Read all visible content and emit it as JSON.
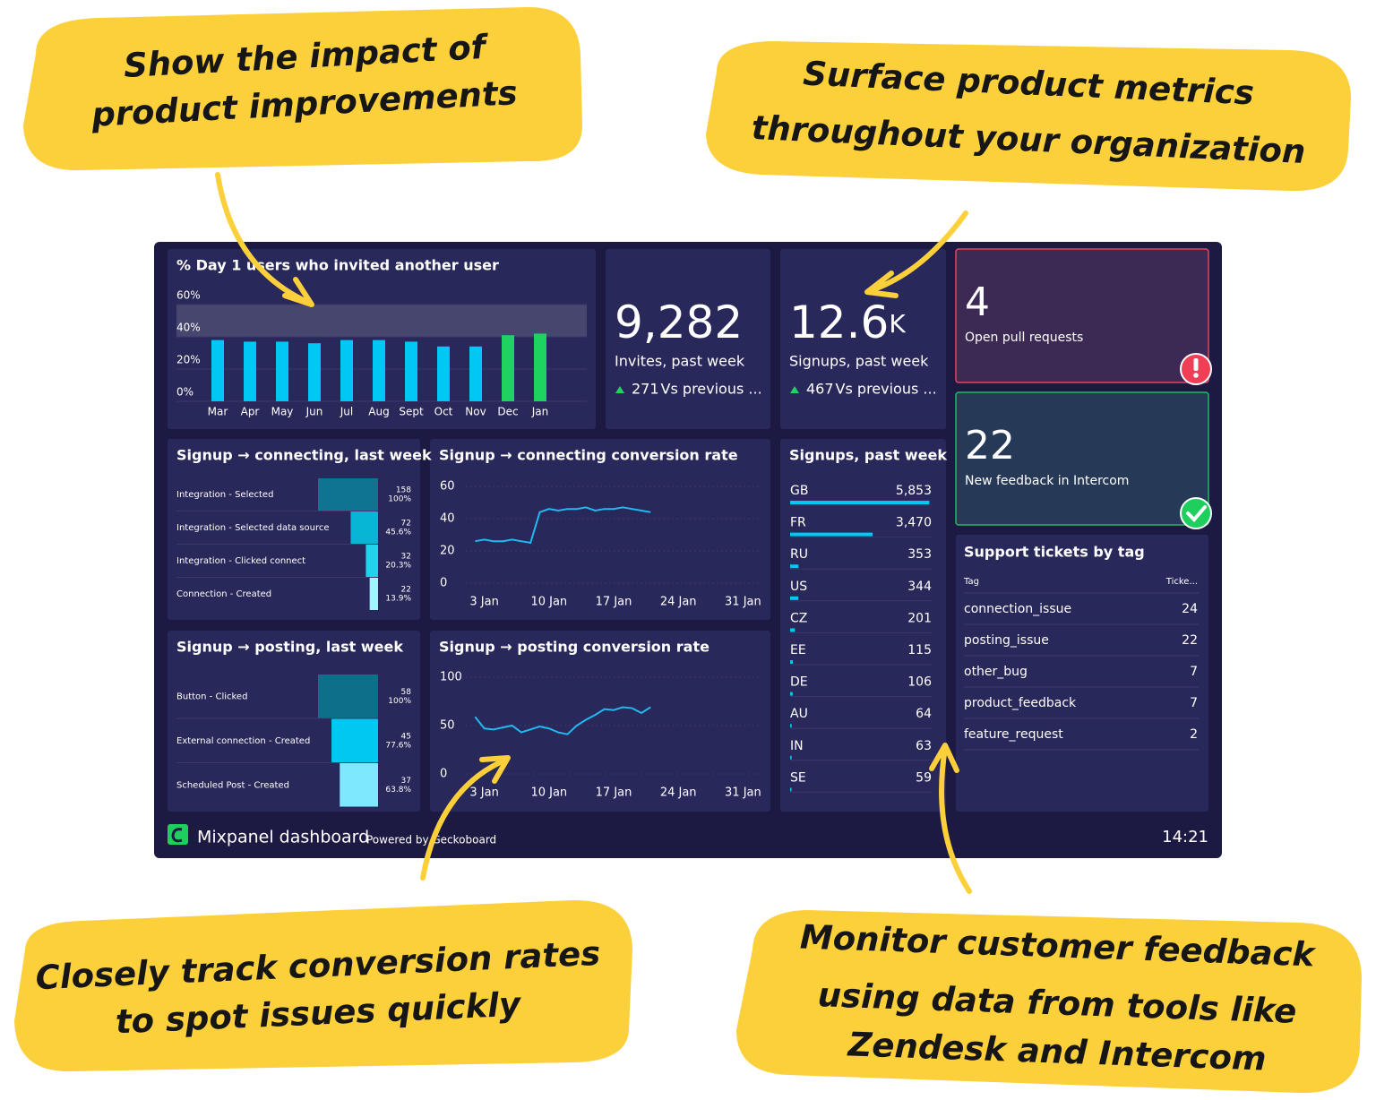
{
  "callouts": [
    [
      "Show the impact of",
      "product improvements"
    ],
    [
      "Surface product metrics",
      "throughout your organization"
    ],
    [
      "Closely track conversion rates",
      "to spot issues quickly"
    ],
    [
      "Monitor customer feedback",
      "using data from tools like",
      "Zendesk and Intercom"
    ]
  ],
  "dashboard": {
    "title": "Mixpanel dashboard",
    "powered_by": "Powered by Geckoboard",
    "time": "14:21"
  },
  "kpis": [
    {
      "value": "9,282",
      "label": "Invites, past week",
      "change": "271",
      "compare": "Vs previous ..."
    },
    {
      "value": "12.6",
      "unit": "K",
      "label": "Signups, past week",
      "change": "467",
      "compare": "Vs previous ..."
    }
  ],
  "alerts": [
    {
      "value": "4",
      "label": "Open pull requests"
    },
    {
      "value": "22",
      "label": "New feedback in Intercom"
    }
  ],
  "table": {
    "title": "Support tickets by tag",
    "columns": [
      "Tag",
      "Ticke..."
    ],
    "rows": [
      [
        "connection_issue",
        "24"
      ],
      [
        "posting_issue",
        "22"
      ],
      [
        "other_bug",
        "7"
      ],
      [
        "product_feedback",
        "7"
      ],
      [
        "feature_request",
        "2"
      ]
    ]
  },
  "chart_data": [
    {
      "type": "bar",
      "title": "% Day 1 users who invited another user",
      "categories": [
        "Mar",
        "Apr",
        "May",
        "Jun",
        "Jul",
        "Aug",
        "Sept",
        "Oct",
        "Nov",
        "Dec",
        "Jan"
      ],
      "values": [
        38,
        37,
        37,
        36,
        38,
        38,
        37,
        34,
        34,
        41,
        42
      ],
      "colors": [
        "#00c8f5",
        "#00c8f5",
        "#00c8f5",
        "#00c8f5",
        "#00c8f5",
        "#00c8f5",
        "#00c8f5",
        "#00c8f5",
        "#00c8f5",
        "#1ed35f",
        "#1ed35f"
      ],
      "target_band": [
        40,
        60
      ],
      "band_color": "#47466f",
      "ylim": [
        0,
        60
      ],
      "yticks": [
        {
          "value": 0,
          "label": "0%"
        },
        {
          "value": 20,
          "label": "20%"
        },
        {
          "value": 40,
          "label": "40%"
        },
        {
          "value": 60,
          "label": "60%"
        }
      ]
    },
    {
      "type": "funnel",
      "title": "Signup → connecting, last week",
      "categories": [
        "Integration - Selected",
        "Integration - Selected data source",
        "Integration - Clicked connect",
        "Connection - Created"
      ],
      "values": [
        158,
        72,
        32,
        22
      ],
      "percent_labels": [
        "100%",
        "45.6%",
        "20.3%",
        "13.9%"
      ],
      "colors": [
        "#0e7490",
        "#06b6d4",
        "#22d3ee",
        "#a5f3fc"
      ]
    },
    {
      "type": "line",
      "title": "Signup → connecting conversion rate",
      "color": "#22b8f0",
      "x": [
        2,
        3,
        4,
        5,
        6,
        7,
        8,
        9,
        10,
        11,
        12,
        13,
        14,
        15,
        16,
        17,
        18,
        19,
        20,
        21
      ],
      "values": [
        26,
        27,
        26,
        26,
        27,
        26,
        25,
        44,
        46,
        45,
        46,
        46,
        47,
        45,
        46,
        46,
        47,
        46,
        45,
        44
      ],
      "xlim": [
        1,
        33
      ],
      "xticks": [
        {
          "value": 3,
          "label": "3 Jan"
        },
        {
          "value": 10,
          "label": "10 Jan"
        },
        {
          "value": 17,
          "label": "17 Jan"
        },
        {
          "value": 24,
          "label": "24 Jan"
        },
        {
          "value": 31,
          "label": "31 Jan"
        }
      ],
      "ylim": [
        0,
        60
      ],
      "yticks": [
        0,
        20,
        40,
        60
      ]
    },
    {
      "type": "funnel",
      "title": "Signup → posting, last week",
      "categories": [
        "Button - Clicked",
        "External connection - Created",
        "Scheduled Post - Created"
      ],
      "values": [
        58,
        45,
        37
      ],
      "percent_labels": [
        "100%",
        "77.6%",
        "63.8%"
      ],
      "colors": [
        "#0e6f8a",
        "#00c8f0",
        "#7de8ff"
      ]
    },
    {
      "type": "line",
      "title": "Signup → posting conversion rate",
      "color": "#22b8f0",
      "x": [
        2,
        3,
        4,
        5,
        6,
        7,
        8,
        9,
        10,
        11,
        12,
        13,
        14,
        15,
        16,
        17,
        18,
        19,
        20,
        21
      ],
      "values": [
        59,
        47,
        46,
        48,
        50,
        43,
        46,
        49,
        47,
        43,
        41,
        50,
        56,
        61,
        67,
        66,
        69,
        68,
        63,
        69
      ],
      "xlim": [
        1,
        33
      ],
      "xticks": [
        {
          "value": 3,
          "label": "3 Jan"
        },
        {
          "value": 10,
          "label": "10 Jan"
        },
        {
          "value": 17,
          "label": "17 Jan"
        },
        {
          "value": 24,
          "label": "24 Jan"
        },
        {
          "value": 31,
          "label": "31 Jan"
        }
      ],
      "ylim": [
        0,
        100
      ],
      "yticks": [
        0,
        50,
        100
      ]
    },
    {
      "type": "hbar",
      "title": "Signups, past week",
      "color": "#00c8f5",
      "categories": [
        "GB",
        "FR",
        "RU",
        "US",
        "CZ",
        "EE",
        "DE",
        "AU",
        "IN",
        "SE"
      ],
      "values": [
        5853,
        3470,
        353,
        344,
        201,
        115,
        106,
        64,
        63,
        59
      ],
      "value_labels": [
        "5,853",
        "3,470",
        "353",
        "344",
        "201",
        "115",
        "106",
        "64",
        "63",
        "59"
      ],
      "xlim": [
        0,
        5950
      ]
    }
  ]
}
